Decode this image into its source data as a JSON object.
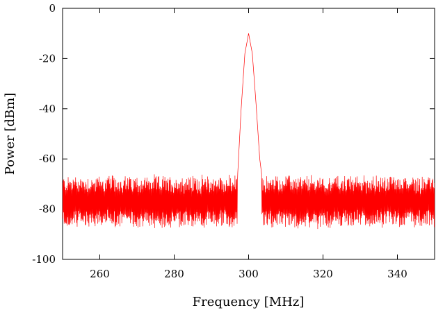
{
  "chart_data": {
    "type": "line",
    "title": "",
    "xlabel": "Frequency [MHz]",
    "ylabel": "Power [dBm]",
    "xlim": [
      250,
      350
    ],
    "ylim": [
      -100,
      0
    ],
    "x_ticks": [
      260,
      280,
      300,
      320,
      340
    ],
    "y_ticks": [
      0,
      -20,
      -40,
      -60,
      -80,
      -100
    ],
    "grid": false,
    "legend": "none",
    "color": "#ff0000",
    "series": [
      {
        "x": [
          250,
          252,
          254,
          256,
          258,
          260,
          262,
          264,
          266,
          268,
          270,
          272,
          274,
          276,
          278,
          280,
          282,
          284,
          286,
          288,
          290,
          292,
          294,
          296,
          297,
          298,
          299,
          300,
          301,
          302,
          303,
          304,
          305,
          306,
          308,
          310,
          312,
          314,
          316,
          318,
          320,
          322,
          324,
          326,
          328,
          330,
          332,
          334,
          336,
          338,
          340,
          342,
          344,
          346,
          348,
          350
        ],
        "y": [
          -77,
          -78,
          -77,
          -79,
          -76,
          -78,
          -77,
          -78,
          -76,
          -78,
          -79,
          -77,
          -78,
          -76,
          -77,
          -78,
          -77,
          -76,
          -77,
          -78,
          -76,
          -77,
          -78,
          -77,
          -68,
          -40,
          -18,
          -10,
          -18,
          -38,
          -60,
          -72,
          -77,
          -78,
          -77,
          -78,
          -76,
          -77,
          -78,
          -77,
          -76,
          -78,
          -77,
          -79,
          -77,
          -76,
          -78,
          -77,
          -78,
          -77,
          -76,
          -78,
          -77,
          -78,
          -77,
          -78
        ]
      }
    ]
  }
}
